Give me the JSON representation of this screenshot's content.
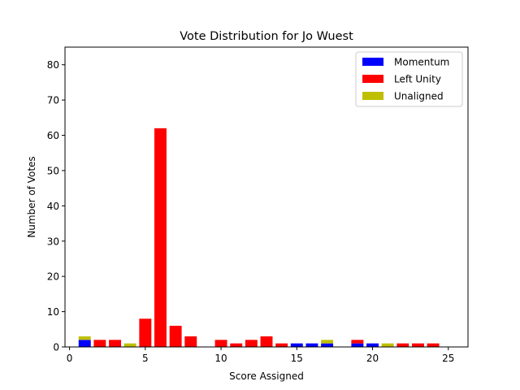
{
  "chart_data": {
    "type": "bar",
    "stacked": true,
    "title": "Vote Distribution for Jo Wuest",
    "xlabel": "Score Assigned",
    "ylabel": "Number of Votes",
    "xlim": [
      -0.3,
      26.3
    ],
    "ylim": [
      0,
      85
    ],
    "xticks": [
      0,
      5,
      10,
      15,
      20,
      25
    ],
    "yticks": [
      0,
      10,
      20,
      30,
      40,
      50,
      60,
      70,
      80
    ],
    "grid": false,
    "legend_position": "top-right",
    "x": [
      1,
      2,
      3,
      4,
      5,
      6,
      7,
      8,
      9,
      10,
      11,
      12,
      13,
      14,
      15,
      16,
      17,
      18,
      19,
      20,
      21,
      22,
      23,
      24,
      25
    ],
    "series": [
      {
        "name": "Momentum",
        "color": "#0000ff",
        "values": [
          2,
          0,
          0,
          0,
          0,
          0,
          0,
          0,
          0,
          0,
          0,
          0,
          0,
          0,
          1,
          1,
          1,
          0,
          1,
          1,
          0,
          0,
          0,
          0,
          0
        ]
      },
      {
        "name": "Left Unity",
        "color": "#ff0000",
        "values": [
          0,
          2,
          2,
          0,
          8,
          62,
          6,
          3,
          0,
          2,
          1,
          2,
          3,
          1,
          0,
          0,
          0,
          0,
          1,
          0,
          0,
          1,
          1,
          1,
          0
        ]
      },
      {
        "name": "Unaligned",
        "color": "#bfbf00",
        "values": [
          1,
          0,
          0,
          1,
          0,
          0,
          0,
          0,
          0,
          0,
          0,
          0,
          0,
          0,
          0,
          0,
          1,
          0,
          0,
          0,
          1,
          0,
          0,
          0,
          0
        ]
      }
    ]
  }
}
